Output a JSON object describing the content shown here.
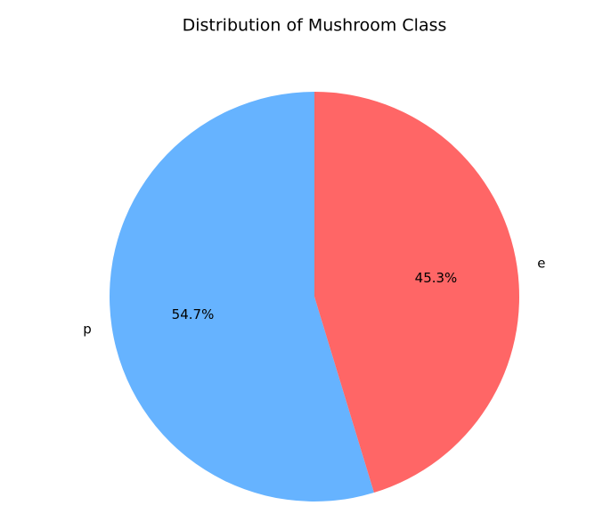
{
  "chart_data": {
    "type": "pie",
    "title": "Distribution of Mushroom Class",
    "categories": [
      "p",
      "e"
    ],
    "values": [
      54.7,
      45.3
    ],
    "value_labels": [
      "54.7%",
      "45.3%"
    ],
    "colors": [
      "#66b3ff",
      "#ff6666"
    ],
    "start_angle": 90,
    "counterclock": true
  }
}
